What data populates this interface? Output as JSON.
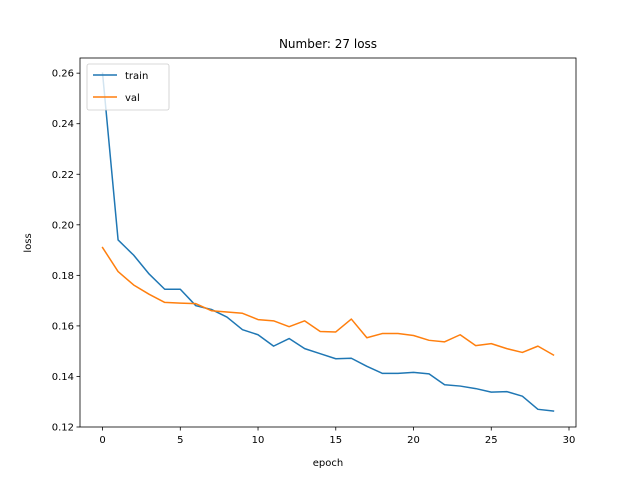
{
  "chart_data": {
    "type": "line",
    "title": "Number: 27 loss",
    "xlabel": "epoch",
    "ylabel": "loss",
    "xlim": [
      -1.45,
      30.45
    ],
    "ylim": [
      0.12,
      0.266
    ],
    "xticks": [
      0,
      5,
      10,
      15,
      20,
      25,
      30
    ],
    "xtick_labels": [
      "0",
      "5",
      "10",
      "15",
      "20",
      "25",
      "30"
    ],
    "yticks": [
      0.12,
      0.14,
      0.16,
      0.18,
      0.2,
      0.22,
      0.24,
      0.26
    ],
    "ytick_labels": [
      "0.12",
      "0.14",
      "0.16",
      "0.18",
      "0.20",
      "0.22",
      "0.24",
      "0.26"
    ],
    "grid": false,
    "legend_position": "top-left",
    "x": [
      0,
      1,
      2,
      3,
      4,
      5,
      6,
      7,
      8,
      9,
      10,
      11,
      12,
      13,
      14,
      15,
      16,
      17,
      18,
      19,
      20,
      21,
      22,
      23,
      24,
      25,
      26,
      27,
      28,
      29
    ],
    "series": [
      {
        "name": "train",
        "color": "#1f77b4",
        "values": [
          0.26,
          0.194,
          0.188,
          0.1805,
          0.1745,
          0.1745,
          0.168,
          0.1665,
          0.1635,
          0.1585,
          0.1565,
          0.152,
          0.155,
          0.151,
          0.149,
          0.147,
          0.1472,
          0.144,
          0.1412,
          0.1412,
          0.1416,
          0.141,
          0.1367,
          0.1362,
          0.1352,
          0.1338,
          0.134,
          0.1322,
          0.127,
          0.1263
        ]
      },
      {
        "name": "val",
        "color": "#ff7f0e",
        "values": [
          0.191,
          0.1815,
          0.1762,
          0.1725,
          0.1693,
          0.169,
          0.1688,
          0.166,
          0.1655,
          0.165,
          0.1625,
          0.162,
          0.1597,
          0.162,
          0.1578,
          0.1576,
          0.1627,
          0.1553,
          0.157,
          0.157,
          0.1562,
          0.1543,
          0.1537,
          0.1565,
          0.1522,
          0.153,
          0.151,
          0.1495,
          0.152,
          0.1485
        ]
      }
    ]
  }
}
